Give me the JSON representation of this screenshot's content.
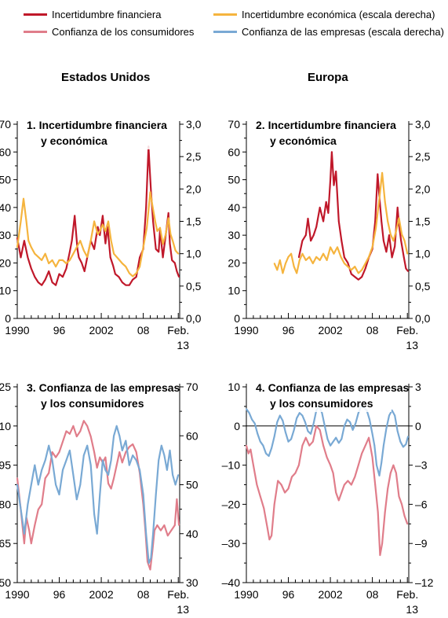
{
  "legend": [
    {
      "label": "Incertidumbre financiera",
      "color": "#c0182a"
    },
    {
      "label": "Incertidumbre económica (escala derecha)",
      "color": "#f5b43e"
    },
    {
      "label": "Confianza de los consumidores",
      "color": "#e07d8a"
    },
    {
      "label": "Confianza de las empresas (escala derecha)",
      "color": "#79a9d4"
    }
  ],
  "columns": {
    "left": "Estados Unidos",
    "right": "Europa"
  },
  "chart_data": [
    {
      "type": "line",
      "title": "1. Incertidumbre financiera",
      "title_line2": "y económica",
      "xticks": [
        "1990",
        "96",
        "2002",
        "08",
        "Feb.",
        "13"
      ],
      "xlim": [
        1990,
        2013.2
      ],
      "ylim_left": [
        0,
        70
      ],
      "ylim_right": [
        0,
        3.0
      ],
      "yticks_left": [
        "0",
        "10",
        "20",
        "30",
        "40",
        "50",
        "60",
        "70"
      ],
      "yticks_right": [
        "0,0",
        "0,5",
        "1,0",
        "1,5",
        "2,0",
        "2,5",
        "3,0"
      ],
      "zero_line": false,
      "series": [
        {
          "axis": "left",
          "color": "#c0182a",
          "x": [
            1990.0,
            1990.5,
            1991.0,
            1991.5,
            1992.0,
            1992.5,
            1993.0,
            1993.5,
            1994.0,
            1994.5,
            1995.0,
            1995.5,
            1996.0,
            1996.5,
            1997.0,
            1997.5,
            1997.8,
            1998.2,
            1998.6,
            1998.8,
            1999.2,
            1999.6,
            2000.0,
            2000.5,
            2001.0,
            2001.5,
            2001.8,
            2002.2,
            2002.6,
            2002.9,
            2003.3,
            2003.7,
            2004.0,
            2004.5,
            2005.0,
            2005.5,
            2006.0,
            2006.5,
            2007.0,
            2007.5,
            2008.0,
            2008.4,
            2008.75,
            2008.9,
            2009.1,
            2009.4,
            2009.8,
            2010.2,
            2010.4,
            2010.8,
            2011.2,
            2011.6,
            2011.8,
            2012.1,
            2012.5,
            2012.8,
            2013.1
          ],
          "values": [
            29,
            22,
            28,
            22,
            18,
            15,
            13,
            12,
            14,
            17,
            13,
            12,
            16,
            15,
            18,
            24,
            28,
            37,
            25,
            22,
            20,
            17,
            22,
            28,
            25,
            33,
            30,
            37,
            27,
            33,
            22,
            19,
            16,
            15,
            13,
            12,
            12,
            14,
            15,
            22,
            25,
            40,
            62,
            55,
            46,
            35,
            25,
            24,
            32,
            22,
            30,
            38,
            27,
            21,
            20,
            17,
            15
          ]
        },
        {
          "axis": "right",
          "color": "#f5b43e",
          "x": [
            1990.0,
            1990.5,
            1990.9,
            1991.3,
            1991.6,
            1992.0,
            1992.5,
            1993.0,
            1993.5,
            1994.0,
            1994.5,
            1995.0,
            1995.5,
            1996.0,
            1996.5,
            1997.0,
            1997.5,
            1998.0,
            1998.5,
            1999.0,
            1999.5,
            2000.0,
            2000.5,
            2001.0,
            2001.5,
            2001.8,
            2002.2,
            2002.6,
            2003.0,
            2003.4,
            2003.8,
            2004.2,
            2004.6,
            2005.0,
            2005.5,
            2006.0,
            2006.5,
            2007.0,
            2007.5,
            2008.0,
            2008.5,
            2009.0,
            2009.3,
            2009.7,
            2010.0,
            2010.4,
            2010.8,
            2011.2,
            2011.6,
            2011.9,
            2012.2,
            2012.6,
            2013.0
          ],
          "values": [
            1.1,
            1.5,
            1.85,
            1.5,
            1.2,
            1.1,
            1.0,
            0.95,
            0.9,
            1.0,
            0.85,
            0.9,
            0.8,
            0.9,
            0.9,
            0.85,
            0.9,
            1.0,
            1.1,
            1.2,
            1.05,
            0.95,
            1.2,
            1.5,
            1.3,
            1.35,
            1.45,
            1.35,
            1.5,
            1.2,
            1.0,
            0.95,
            0.9,
            0.85,
            0.8,
            0.7,
            0.65,
            0.7,
            0.8,
            1.1,
            1.4,
            1.95,
            1.75,
            1.5,
            1.35,
            1.4,
            1.15,
            1.3,
            1.55,
            1.3,
            1.2,
            1.05,
            1.0
          ]
        }
      ]
    },
    {
      "type": "line",
      "title": "2. Incertidumbre financiera",
      "title_line2": "y económica",
      "xticks": [
        "1990",
        "96",
        "2002",
        "08",
        "Feb.",
        "13"
      ],
      "xlim": [
        1990,
        2013.2
      ],
      "ylim_left": [
        0,
        70
      ],
      "ylim_right": [
        0,
        3.0
      ],
      "yticks_left": [
        "0",
        "10",
        "20",
        "30",
        "40",
        "50",
        "60",
        "70"
      ],
      "yticks_right": [
        "0,0",
        "0,5",
        "1,0",
        "1,5",
        "2,0",
        "2,5",
        "3,0"
      ],
      "zero_line": false,
      "series": [
        {
          "axis": "left",
          "color": "#c0182a",
          "x": [
            1997.5,
            1998.0,
            1998.5,
            1998.8,
            1999.2,
            1999.6,
            2000.0,
            2000.5,
            2001.0,
            2001.4,
            2001.7,
            2002.0,
            2002.2,
            2002.5,
            2002.8,
            2003.2,
            2003.6,
            2004.0,
            2004.5,
            2005.0,
            2005.5,
            2006.0,
            2006.5,
            2007.0,
            2007.5,
            2008.0,
            2008.4,
            2008.75,
            2009.0,
            2009.3,
            2009.6,
            2010.0,
            2010.4,
            2010.8,
            2011.2,
            2011.6,
            2011.8,
            2012.1,
            2012.5,
            2012.8,
            2013.1
          ],
          "values": [
            22,
            28,
            30,
            36,
            28,
            30,
            33,
            40,
            35,
            42,
            38,
            50,
            60,
            48,
            53,
            35,
            28,
            22,
            20,
            16,
            15,
            14,
            15,
            18,
            22,
            25,
            35,
            52,
            44,
            35,
            28,
            24,
            30,
            22,
            26,
            40,
            34,
            28,
            22,
            18,
            17
          ]
        },
        {
          "axis": "right",
          "color": "#f5b43e",
          "x": [
            1994.0,
            1994.4,
            1994.8,
            1995.2,
            1995.6,
            1996.0,
            1996.4,
            1996.8,
            1997.2,
            1997.6,
            1998.0,
            1998.5,
            1999.0,
            1999.5,
            2000.0,
            2000.5,
            2001.0,
            2001.5,
            2002.0,
            2002.5,
            2003.0,
            2003.5,
            2004.0,
            2004.5,
            2005.0,
            2005.5,
            2006.0,
            2006.5,
            2007.0,
            2007.5,
            2008.0,
            2008.5,
            2009.0,
            2009.4,
            2009.8,
            2010.2,
            2010.6,
            2011.0,
            2011.4,
            2011.8,
            2012.2,
            2012.6,
            2013.0
          ],
          "values": [
            0.85,
            0.75,
            0.9,
            0.7,
            0.85,
            0.95,
            1.0,
            0.8,
            0.7,
            0.9,
            1.0,
            0.9,
            0.95,
            0.85,
            0.95,
            0.9,
            1.0,
            0.9,
            1.1,
            1.0,
            1.1,
            0.95,
            0.85,
            0.8,
            0.75,
            0.8,
            0.7,
            0.75,
            0.85,
            0.95,
            1.1,
            1.4,
            1.85,
            2.25,
            1.8,
            1.5,
            1.3,
            1.2,
            1.35,
            1.55,
            1.3,
            1.2,
            1.0
          ]
        }
      ]
    },
    {
      "type": "line",
      "title": "3. Confianza de las empresas",
      "title_line2": "y los consumidores",
      "xticks": [
        "1990",
        "96",
        "2002",
        "08",
        "Feb.",
        "13"
      ],
      "xlim": [
        1990,
        2013.2
      ],
      "ylim_left": [
        50,
        125
      ],
      "ylim_right": [
        30,
        70
      ],
      "yticks_left": [
        "50",
        "65",
        "80",
        "95",
        "110",
        "125"
      ],
      "yticks_right": [
        "30",
        "40",
        "50",
        "60",
        "70"
      ],
      "zero_line": false,
      "series": [
        {
          "axis": "left",
          "color": "#e07d8a",
          "x": [
            1990.0,
            1990.5,
            1991.0,
            1991.3,
            1991.7,
            1992.0,
            1992.5,
            1993.0,
            1993.5,
            1994.0,
            1994.5,
            1995.0,
            1995.5,
            1996.0,
            1996.5,
            1997.0,
            1997.5,
            1998.0,
            1998.5,
            1999.0,
            1999.5,
            2000.0,
            2000.5,
            2001.0,
            2001.4,
            2001.8,
            2002.2,
            2002.6,
            2003.0,
            2003.4,
            2003.8,
            2004.2,
            2004.6,
            2005.0,
            2005.5,
            2006.0,
            2006.5,
            2007.0,
            2007.5,
            2008.0,
            2008.3,
            2008.6,
            2009.0,
            2009.3,
            2009.6,
            2010.0,
            2010.5,
            2011.0,
            2011.5,
            2012.0,
            2012.5,
            2012.8,
            2013.1
          ],
          "values": [
            90,
            78,
            65,
            75,
            70,
            65,
            72,
            78,
            80,
            90,
            92,
            100,
            98,
            100,
            104,
            108,
            107,
            110,
            106,
            108,
            112,
            110,
            106,
            100,
            94,
            98,
            96,
            98,
            88,
            86,
            90,
            95,
            100,
            96,
            100,
            102,
            103,
            100,
            92,
            80,
            70,
            58,
            55,
            62,
            70,
            72,
            70,
            72,
            68,
            70,
            72,
            82,
            72
          ]
        },
        {
          "axis": "right",
          "color": "#79a9d4",
          "x": [
            1990.0,
            1990.5,
            1991.0,
            1991.5,
            1992.0,
            1992.5,
            1993.0,
            1993.5,
            1994.0,
            1994.5,
            1995.0,
            1995.5,
            1996.0,
            1996.5,
            1997.0,
            1997.5,
            1998.0,
            1998.5,
            1999.0,
            1999.5,
            2000.0,
            2000.5,
            2001.0,
            2001.4,
            2001.8,
            2002.2,
            2002.6,
            2003.0,
            2003.4,
            2003.8,
            2004.2,
            2004.6,
            2005.0,
            2005.5,
            2006.0,
            2006.5,
            2007.0,
            2007.5,
            2008.0,
            2008.4,
            2008.8,
            2009.1,
            2009.4,
            2009.8,
            2010.2,
            2010.6,
            2011.0,
            2011.4,
            2011.8,
            2012.2,
            2012.6,
            2013.0
          ],
          "values": [
            50,
            45,
            40,
            46,
            50,
            54,
            50,
            53,
            55,
            58,
            55,
            50,
            48,
            53,
            55,
            57,
            52,
            47,
            50,
            56,
            58,
            54,
            44,
            40,
            48,
            55,
            53,
            52,
            55,
            60,
            62,
            60,
            57,
            59,
            54,
            56,
            55,
            53,
            48,
            40,
            34,
            35,
            40,
            48,
            55,
            58,
            56,
            53,
            57,
            52,
            50,
            52
          ]
        }
      ]
    },
    {
      "type": "line",
      "title": "4. Confianza de las empresas",
      "title_line2": "y los consumidores",
      "xticks": [
        "1990",
        "96",
        "2002",
        "08",
        "Feb.",
        "13"
      ],
      "xlim": [
        1990,
        2013.2
      ],
      "ylim_left": [
        -40,
        10
      ],
      "ylim_right": [
        -12,
        3
      ],
      "yticks_left": [
        "–40",
        "–30",
        "–20",
        "–10",
        "0",
        "10"
      ],
      "yticks_right": [
        "–12",
        "–9",
        "–6",
        "–3",
        "0",
        "3"
      ],
      "zero_line": true,
      "series": [
        {
          "axis": "left",
          "color": "#e07d8a",
          "x": [
            1990.0,
            1990.3,
            1990.6,
            1991.0,
            1991.5,
            1992.0,
            1992.5,
            1993.0,
            1993.3,
            1993.6,
            1994.0,
            1994.5,
            1995.0,
            1995.5,
            1996.0,
            1996.5,
            1997.0,
            1997.5,
            1998.0,
            1998.5,
            1999.0,
            1999.5,
            2000.0,
            2000.5,
            2001.0,
            2001.5,
            2002.0,
            2002.4,
            2002.8,
            2003.2,
            2003.6,
            2004.0,
            2004.5,
            2005.0,
            2005.5,
            2006.0,
            2006.5,
            2007.0,
            2007.5,
            2008.0,
            2008.4,
            2008.8,
            2009.1,
            2009.4,
            2009.8,
            2010.2,
            2010.6,
            2011.0,
            2011.4,
            2011.8,
            2012.2,
            2012.6,
            2013.0
          ],
          "values": [
            -5,
            -7,
            -6,
            -10,
            -15,
            -18,
            -21,
            -26,
            -29,
            -28,
            -20,
            -14,
            -15,
            -17,
            -16,
            -13,
            -12,
            -10,
            -5,
            -3,
            -5,
            -4,
            0,
            -1,
            -5,
            -8,
            -10,
            -12,
            -17,
            -19,
            -17,
            -15,
            -14,
            -15,
            -13,
            -10,
            -7,
            -5,
            -3,
            -8,
            -15,
            -22,
            -33,
            -30,
            -22,
            -16,
            -12,
            -10,
            -12,
            -18,
            -20,
            -23,
            -25
          ]
        },
        {
          "axis": "right",
          "color": "#79a9d4",
          "x": [
            1990.0,
            1990.4,
            1990.8,
            1991.2,
            1991.6,
            1992.0,
            1992.4,
            1992.8,
            1993.2,
            1993.6,
            1994.0,
            1994.4,
            1994.8,
            1995.2,
            1995.6,
            1996.0,
            1996.4,
            1996.8,
            1997.2,
            1997.6,
            1998.0,
            1998.4,
            1998.8,
            1999.2,
            1999.6,
            2000.0,
            2000.4,
            2000.8,
            2001.2,
            2001.6,
            2002.0,
            2002.4,
            2002.8,
            2003.2,
            2003.6,
            2004.0,
            2004.4,
            2004.8,
            2005.2,
            2005.6,
            2006.0,
            2006.4,
            2006.8,
            2007.2,
            2007.6,
            2008.0,
            2008.3,
            2008.6,
            2009.0,
            2009.3,
            2009.6,
            2010.0,
            2010.4,
            2010.8,
            2011.2,
            2011.6,
            2012.0,
            2012.4,
            2012.8,
            2013.1
          ],
          "values": [
            1.3,
            1.0,
            0.5,
            0.2,
            -0.6,
            -1.2,
            -1.5,
            -2.1,
            -2.3,
            -1.7,
            -0.8,
            0.3,
            0.8,
            0.4,
            -0.5,
            -1.2,
            -1.0,
            -0.3,
            0.6,
            1.0,
            0.8,
            0.3,
            -0.4,
            -0.6,
            0.2,
            1.2,
            1.5,
            1.0,
            0.0,
            -1.0,
            -1.5,
            -1.2,
            -0.9,
            -1.3,
            -1.0,
            0.0,
            0.5,
            0.3,
            -0.3,
            0.2,
            1.0,
            1.5,
            1.4,
            1.2,
            0.5,
            -0.6,
            -1.5,
            -3.0,
            -3.8,
            -2.8,
            -1.5,
            -0.2,
            0.8,
            1.2,
            0.8,
            -0.4,
            -1.2,
            -1.6,
            -1.4,
            -0.8
          ]
        }
      ]
    }
  ]
}
